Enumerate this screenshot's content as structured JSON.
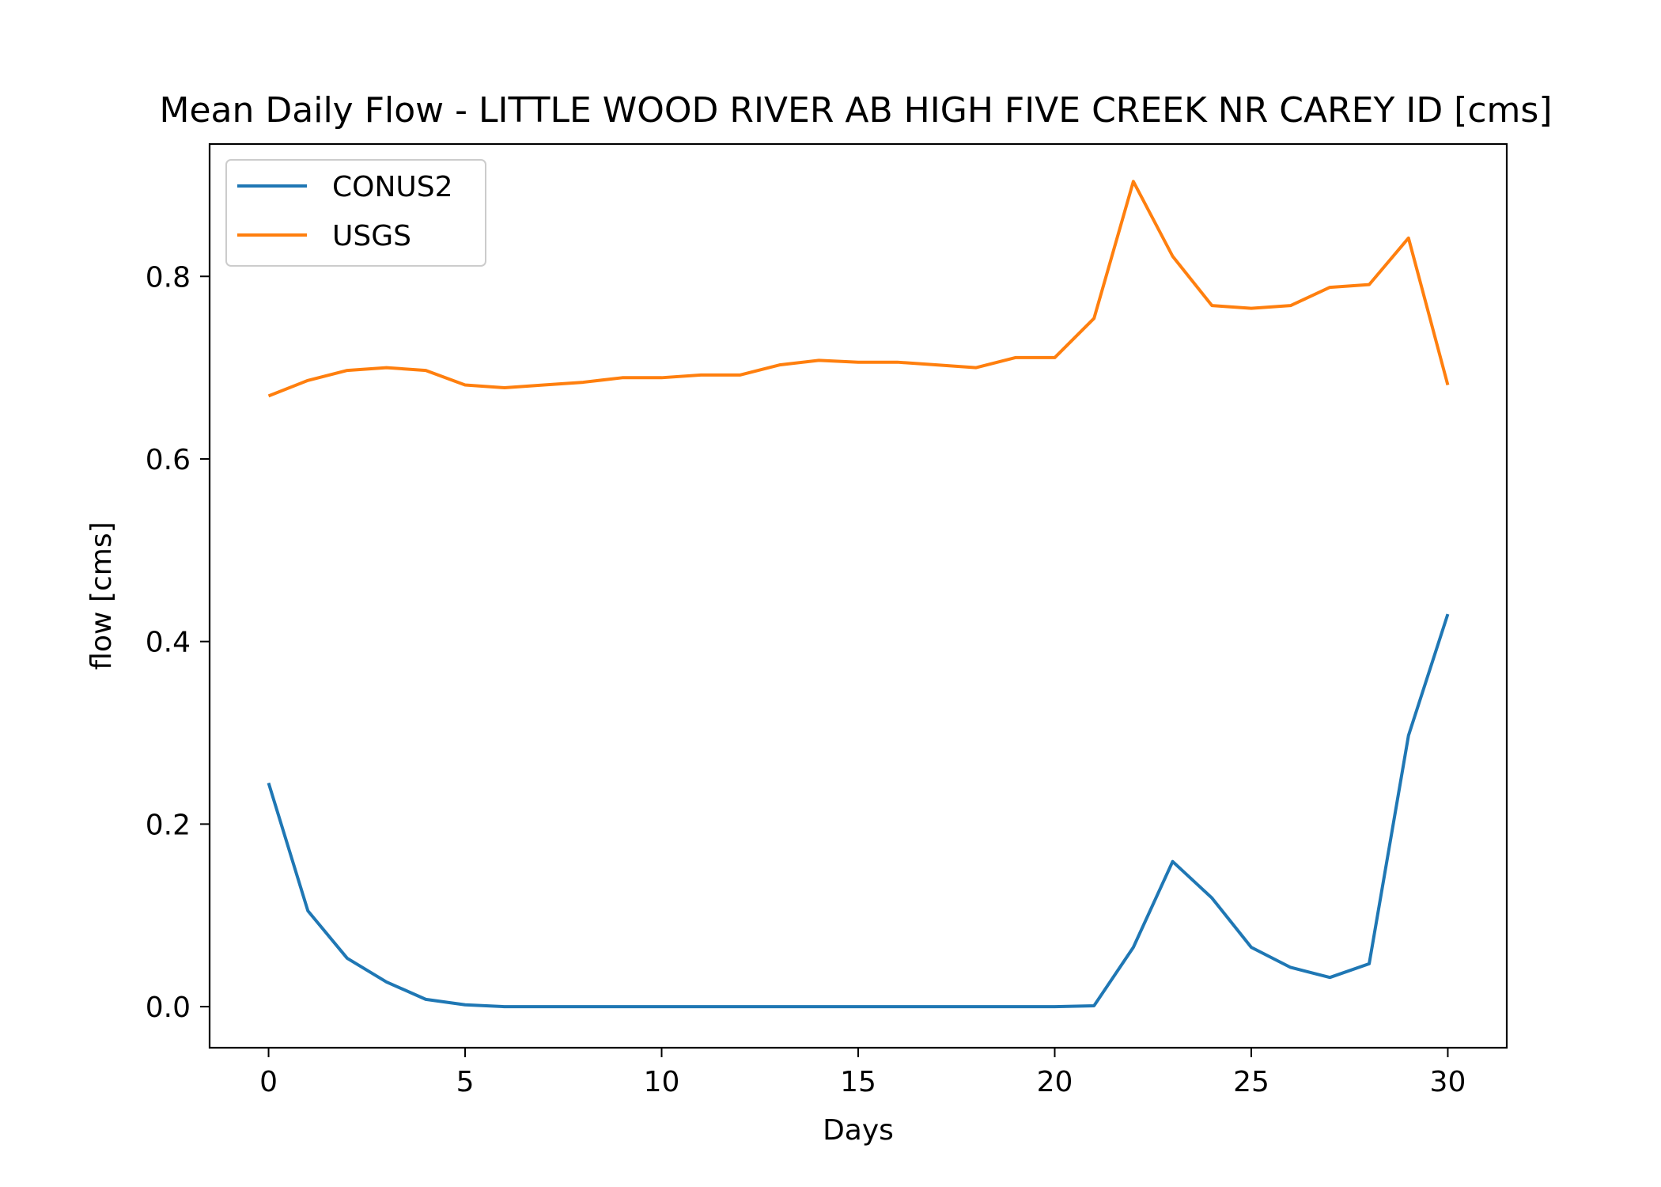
{
  "chart_data": {
    "type": "line",
    "title": "Mean Daily Flow - LITTLE WOOD RIVER AB HIGH FIVE CREEK NR CAREY ID [cms]",
    "xlabel": "Days",
    "ylabel": "flow [cms]",
    "xlim": [
      -1.5,
      31.5
    ],
    "ylim": [
      -0.045,
      0.945
    ],
    "xticks": [
      0,
      5,
      10,
      15,
      20,
      25,
      30
    ],
    "xtick_labels": [
      "0",
      "5",
      "10",
      "15",
      "20",
      "25",
      "30"
    ],
    "yticks": [
      0.0,
      0.2,
      0.4,
      0.6,
      0.8
    ],
    "ytick_labels": [
      "0.0",
      "0.2",
      "0.4",
      "0.6",
      "0.8"
    ],
    "grid": false,
    "legend_position": "top-left",
    "x": [
      0,
      1,
      2,
      3,
      4,
      5,
      6,
      7,
      8,
      9,
      10,
      11,
      12,
      13,
      14,
      15,
      16,
      17,
      18,
      19,
      20,
      21,
      22,
      23,
      24,
      25,
      26,
      27,
      28,
      29,
      30
    ],
    "series": [
      {
        "name": "CONUS2",
        "color": "#1f77b4",
        "values": [
          0.245,
          0.105,
          0.053,
          0.027,
          0.008,
          0.002,
          0.0,
          0.0,
          0.0,
          0.0,
          0.0,
          0.0,
          0.0,
          0.0,
          0.0,
          0.0,
          0.0,
          0.0,
          0.0,
          0.0,
          0.0,
          0.001,
          0.065,
          0.159,
          0.119,
          0.065,
          0.043,
          0.032,
          0.047,
          0.297,
          0.43
        ]
      },
      {
        "name": "USGS",
        "color": "#ff7f0e",
        "values": [
          0.669,
          0.686,
          0.697,
          0.7,
          0.697,
          0.681,
          0.678,
          0.681,
          0.684,
          0.689,
          0.689,
          0.692,
          0.692,
          0.703,
          0.708,
          0.706,
          0.706,
          0.703,
          0.7,
          0.711,
          0.711,
          0.754,
          0.904,
          0.822,
          0.768,
          0.765,
          0.768,
          0.788,
          0.791,
          0.842,
          0.681
        ]
      }
    ]
  }
}
